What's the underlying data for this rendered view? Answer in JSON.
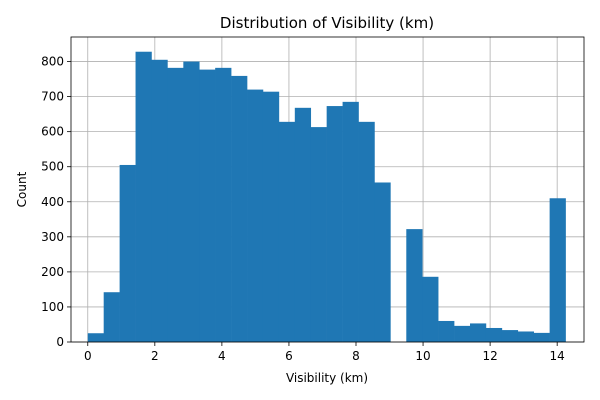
{
  "chart_data": {
    "type": "bar",
    "title": "Distribution of Visibility (km)",
    "xlabel": "Visibility (km)",
    "ylabel": "Count",
    "xlim": [
      -0.5,
      14.8
    ],
    "ylim": [
      0,
      870
    ],
    "xticks": [
      0,
      2,
      4,
      6,
      8,
      10,
      12,
      14
    ],
    "yticks": [
      0,
      100,
      200,
      300,
      400,
      500,
      600,
      700,
      800
    ],
    "grid": true,
    "bar_color": "#1f77b4",
    "bin_width": 0.475,
    "bins": [
      {
        "x0": 0.0,
        "count": 25
      },
      {
        "x0": 0.475,
        "count": 142
      },
      {
        "x0": 0.95,
        "count": 505
      },
      {
        "x0": 1.425,
        "count": 828
      },
      {
        "x0": 1.9,
        "count": 805
      },
      {
        "x0": 2.375,
        "count": 782
      },
      {
        "x0": 2.85,
        "count": 800
      },
      {
        "x0": 3.325,
        "count": 777
      },
      {
        "x0": 3.8,
        "count": 782
      },
      {
        "x0": 4.275,
        "count": 759
      },
      {
        "x0": 4.75,
        "count": 720
      },
      {
        "x0": 5.225,
        "count": 714
      },
      {
        "x0": 5.7,
        "count": 628
      },
      {
        "x0": 6.175,
        "count": 668
      },
      {
        "x0": 6.65,
        "count": 613
      },
      {
        "x0": 7.125,
        "count": 673
      },
      {
        "x0": 7.6,
        "count": 685
      },
      {
        "x0": 8.075,
        "count": 628
      },
      {
        "x0": 8.55,
        "count": 455
      },
      {
        "x0": 9.025,
        "count": 0
      },
      {
        "x0": 9.5,
        "count": 322
      },
      {
        "x0": 9.975,
        "count": 186
      },
      {
        "x0": 10.45,
        "count": 60
      },
      {
        "x0": 10.925,
        "count": 46
      },
      {
        "x0": 11.4,
        "count": 53
      },
      {
        "x0": 11.875,
        "count": 40
      },
      {
        "x0": 12.35,
        "count": 34
      },
      {
        "x0": 12.825,
        "count": 30
      },
      {
        "x0": 13.3,
        "count": 26
      },
      {
        "x0": 13.775,
        "count": 410
      }
    ]
  }
}
